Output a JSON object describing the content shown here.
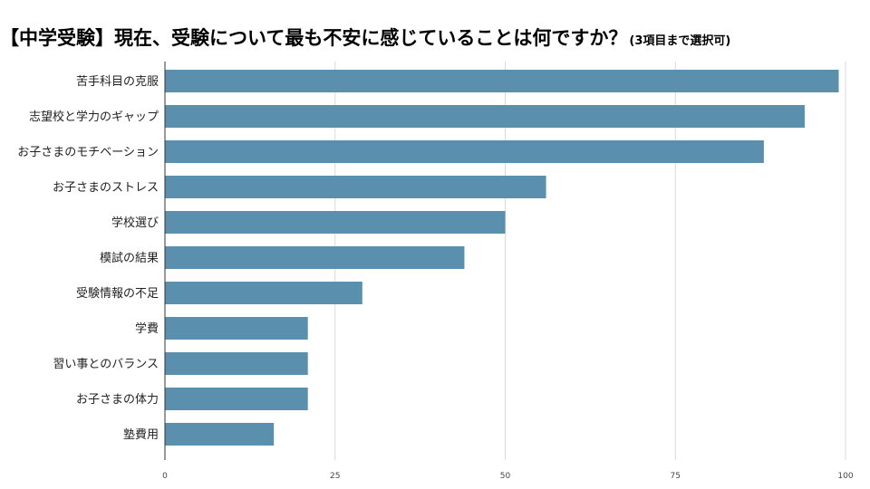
{
  "title": {
    "main": "【中学受験】現在、受験について最も不安に感じていることは何ですか？",
    "sub": "(3項目まで選択可)"
  },
  "chart_data": {
    "type": "bar",
    "orientation": "horizontal",
    "categories": [
      "苦手科目の克服",
      "志望校と学力のギャップ",
      "お子さまのモチベーション",
      "お子さまのストレス",
      "学校選び",
      "模試の結果",
      "受験情報の不足",
      "学費",
      "習い事とのバランス",
      "お子さまの体力",
      "塾費用"
    ],
    "values": [
      99,
      94,
      88,
      56,
      50,
      44,
      29,
      21,
      21,
      21,
      16
    ],
    "xlim": [
      0,
      100
    ],
    "ticks": [
      "0",
      "25",
      "50",
      "75",
      "100"
    ],
    "tick_values": [
      0,
      25,
      50,
      75,
      100
    ],
    "xlabel": "",
    "ylabel": "",
    "grid": true,
    "bar_color": "#5b8fae",
    "grid_color": "#d9d9d9",
    "axis_color": "#333333"
  }
}
